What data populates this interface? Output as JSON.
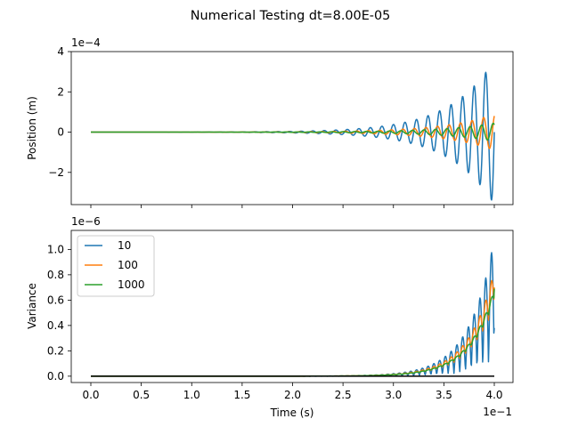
{
  "figure_title": "Numerical Testing dt=8.00E-05",
  "colors": {
    "series_10": "#1f77b4",
    "series_100": "#ff7f0e",
    "series_1000": "#2ca02c",
    "zero_line": "#000000"
  },
  "chart_data": [
    {
      "type": "line",
      "ylabel": "Position (m)",
      "xlabel": "",
      "y_offset_label": "1e−4",
      "xlim": [
        0.0,
        0.4
      ],
      "ylim": [
        -3.6,
        4.0
      ],
      "y_ticks": [
        -2,
        0,
        2,
        4
      ],
      "y_tick_labels": [
        "−2",
        "0",
        "2",
        "4"
      ],
      "x_ticks": [
        0.0,
        0.05,
        0.1,
        0.15,
        0.2,
        0.25,
        0.3,
        0.35,
        0.4
      ],
      "show_x_tick_labels": false,
      "grid": false,
      "series": [
        {
          "name": "10",
          "color_key": "series_10",
          "amplitude_at_end": 3.6,
          "growth": 9,
          "cycles": 35,
          "phase": 0.0
        },
        {
          "name": "100",
          "color_key": "series_100",
          "amplitude_at_end": 0.9,
          "growth": 8,
          "cycles": 35,
          "phase": 1.1
        },
        {
          "name": "1000",
          "color_key": "series_1000",
          "amplitude_at_end": 0.45,
          "growth": 8,
          "cycles": 35,
          "phase": 2.2
        }
      ]
    },
    {
      "type": "line",
      "ylabel": "Variance",
      "xlabel": "Time (s)",
      "y_offset_label": "1e−6",
      "x_offset_label": "1e−1",
      "xlim": [
        0.0,
        0.4
      ],
      "ylim": [
        -0.05,
        1.15
      ],
      "y_ticks": [
        0.0,
        0.2,
        0.4,
        0.6,
        0.8,
        1.0
      ],
      "y_tick_labels": [
        "0.0",
        "0.2",
        "0.4",
        "0.6",
        "0.8",
        "1.0"
      ],
      "x_ticks": [
        0.0,
        0.05,
        0.1,
        0.15,
        0.2,
        0.25,
        0.3,
        0.35,
        0.4
      ],
      "x_tick_labels": [
        "0.0",
        "0.5",
        "1.0",
        "1.5",
        "2.0",
        "2.5",
        "3.0",
        "3.5",
        "4.0"
      ],
      "grid": false,
      "legend": {
        "placement": "upper-left",
        "entries": [
          "10",
          "100",
          "1000"
        ]
      },
      "series": [
        {
          "name": "10",
          "color_key": "series_10",
          "peak_at_end": 1.09,
          "end_value": 0.38,
          "growth": 16,
          "cycles": 35,
          "oscillation": 0.9
        },
        {
          "name": "100",
          "color_key": "series_100",
          "peak_at_end": 0.84,
          "end_value": 0.7,
          "growth": 16,
          "cycles": 35,
          "oscillation": 0.35
        },
        {
          "name": "1000",
          "color_key": "series_1000",
          "peak_at_end": 0.69,
          "end_value": 0.69,
          "growth": 16,
          "cycles": 35,
          "oscillation": 0.12
        }
      ],
      "zero_line": {
        "y": 0.0,
        "color_key": "zero_line"
      }
    }
  ]
}
